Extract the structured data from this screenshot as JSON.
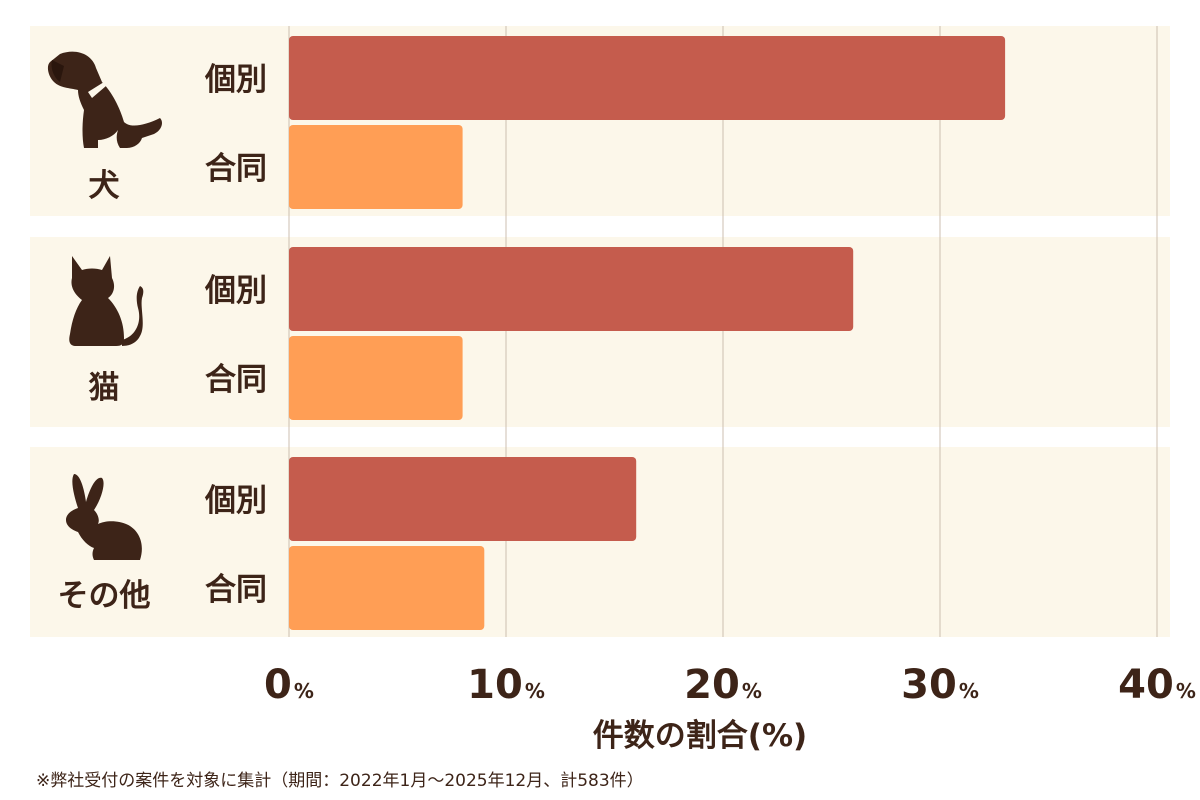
{
  "colors": {
    "panel": "#fcf7ea",
    "individual": "#c55c4d",
    "joint": "#ff9e55",
    "text": "#3d2418",
    "grid": "#cdbfb0"
  },
  "chart_data": {
    "type": "bar",
    "orientation": "horizontal",
    "groups": [
      {
        "label": "犬",
        "icon": "dog-icon"
      },
      {
        "label": "猫",
        "icon": "cat-icon"
      },
      {
        "label": "その他",
        "icon": "rabbit-icon"
      }
    ],
    "series": [
      {
        "name": "個別",
        "color": "#c55c4d",
        "values": [
          33.0,
          26.0,
          16.0
        ]
      },
      {
        "name": "合同",
        "color": "#ff9e55",
        "values": [
          8.0,
          8.0,
          9.0
        ]
      }
    ],
    "xlim": [
      0,
      40
    ],
    "xticks": [
      {
        "num": "0",
        "unit": "%"
      },
      {
        "num": "10",
        "unit": "%"
      },
      {
        "num": "20",
        "unit": "%"
      },
      {
        "num": "30",
        "unit": "%"
      },
      {
        "num": "40",
        "unit": "%"
      }
    ],
    "xlabel": "件数の割合(%)",
    "grid": true
  },
  "footnote": "※弊社受付の案件を対象に集計（期間：2022年1月〜2025年12月、計583件）"
}
